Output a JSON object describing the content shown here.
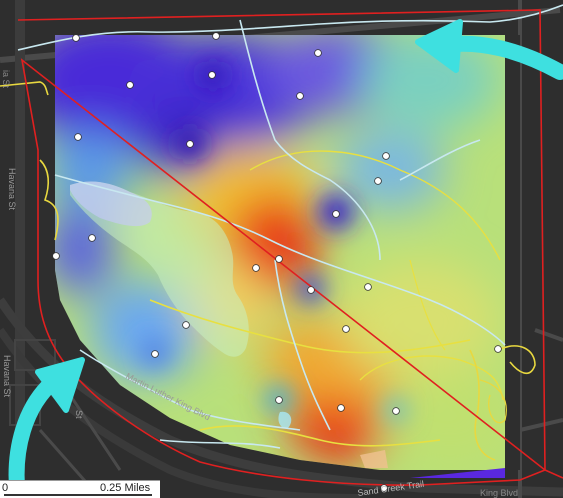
{
  "streets": {
    "havana_st": "Havana St",
    "havana_st_lower": "Havana St",
    "mlk_blvd": "Martin Luther King Blvd",
    "mlk_blvd_right": "King Blvd",
    "sand_creek_trail": "Sand Creek Trail",
    "st_partial": "St",
    "partial_label": "ia St"
  },
  "scale_bar": {
    "start_label": "0",
    "end_label": "0.25 Miles"
  },
  "colors": {
    "boundary": "#e02020",
    "arrow": "#3ee0e0",
    "trail": "#e8e040",
    "path": "#c8e8f0",
    "sample_point": "#ffffff",
    "heat_low": "#4a2ad8",
    "heat_mid": "#8ee0b0",
    "heat_high": "#e02818"
  },
  "icons": [
    "arrow-top-right-icon",
    "arrow-bottom-left-icon"
  ]
}
